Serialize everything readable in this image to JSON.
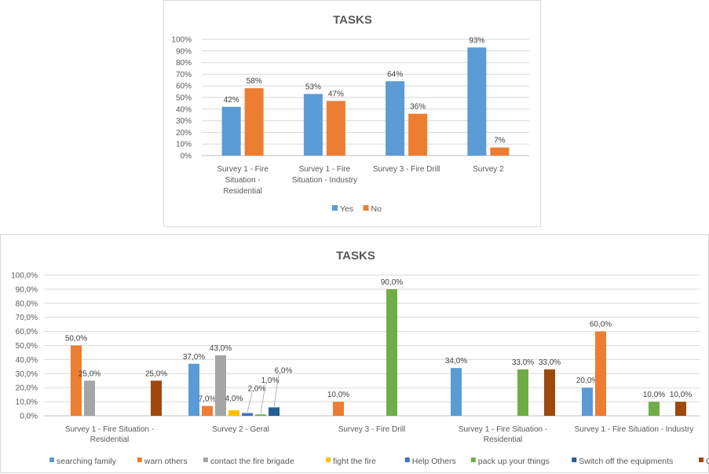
{
  "chart_data": [
    {
      "type": "bar",
      "title": "TASKS",
      "categories": [
        [
          "Survey 1 - Fire",
          "Situation -",
          "Residential"
        ],
        [
          "Survey 1 - Fire",
          "Situation - Industry"
        ],
        [
          "Survey 3 - Fire Drill"
        ],
        [
          "Survey 2"
        ]
      ],
      "series": [
        {
          "name": "Yes",
          "color": "#5b9bd5",
          "values": [
            42,
            53,
            64,
            93
          ],
          "labels": [
            "42%",
            "53%",
            "64%",
            "93%"
          ]
        },
        {
          "name": "No",
          "color": "#ed7d31",
          "values": [
            58,
            47,
            36,
            7
          ],
          "labels": [
            "58%",
            "47%",
            "36%",
            "7%"
          ]
        }
      ],
      "ylim": [
        0,
        100
      ],
      "yticks": [
        "0%",
        "10%",
        "20%",
        "30%",
        "40%",
        "50%",
        "60%",
        "70%",
        "80%",
        "90%",
        "100%"
      ],
      "grid": true,
      "legend_position": "bottom"
    },
    {
      "type": "bar",
      "title": "TASKS",
      "categories": [
        [
          "Survey 1 - Fire Situation -",
          "Residential"
        ],
        [
          "Survey 2 - Geral"
        ],
        [
          "Survey 3 - Fire Drill"
        ],
        [
          "Survey 1 - Fire Situation -",
          "Residential"
        ],
        [
          "Survey 1 - Fire Situation - Industry"
        ]
      ],
      "series": [
        {
          "name": "searching family",
          "color": "#5b9bd5",
          "values": [
            null,
            37,
            null,
            34,
            20
          ],
          "labels": [
            null,
            "37,0%",
            null,
            "34,0%",
            "20,0%"
          ]
        },
        {
          "name": "warn others",
          "color": "#ed7d31",
          "values": [
            50,
            7,
            10,
            null,
            60
          ],
          "labels": [
            "50,0%",
            "7,0%",
            "10,0%",
            null,
            "60,0%"
          ]
        },
        {
          "name": "contact the fire brigade",
          "color": "#a5a5a5",
          "values": [
            25,
            43,
            null,
            null,
            null
          ],
          "labels": [
            "25,0%",
            "43,0%",
            null,
            null,
            null
          ]
        },
        {
          "name": "fight the fire",
          "color": "#ffc000",
          "values": [
            null,
            4,
            null,
            null,
            null
          ],
          "labels": [
            null,
            "4,0%",
            null,
            null,
            null
          ]
        },
        {
          "name": "Help Others",
          "color": "#4472c4",
          "values": [
            null,
            2,
            null,
            null,
            null
          ],
          "labels": [
            null,
            "2,0%",
            null,
            null,
            null
          ]
        },
        {
          "name": "pack up your things",
          "color": "#70ad47",
          "values": [
            null,
            1,
            90,
            33,
            10
          ],
          "labels": [
            null,
            "1,0%",
            "90,0%",
            "33,0%",
            "10,0%"
          ]
        },
        {
          "name": "Switch off the equipments",
          "color": "#255e91",
          "values": [
            null,
            6,
            null,
            null,
            null
          ],
          "labels": [
            null,
            "6,0%",
            null,
            null,
            null
          ]
        },
        {
          "name": "Others",
          "color": "#9e480e",
          "values": [
            25,
            null,
            null,
            33,
            10
          ],
          "labels": [
            "25,0%",
            null,
            null,
            "33,0%",
            "10,0%"
          ]
        }
      ],
      "ylim": [
        0,
        100
      ],
      "yticks": [
        "0,0%",
        "10,0%",
        "20,0%",
        "30,0%",
        "40,0%",
        "50,0%",
        "60,0%",
        "70,0%",
        "80,0%",
        "90,0%",
        "100,0%"
      ],
      "grid": true,
      "legend_position": "bottom"
    }
  ]
}
